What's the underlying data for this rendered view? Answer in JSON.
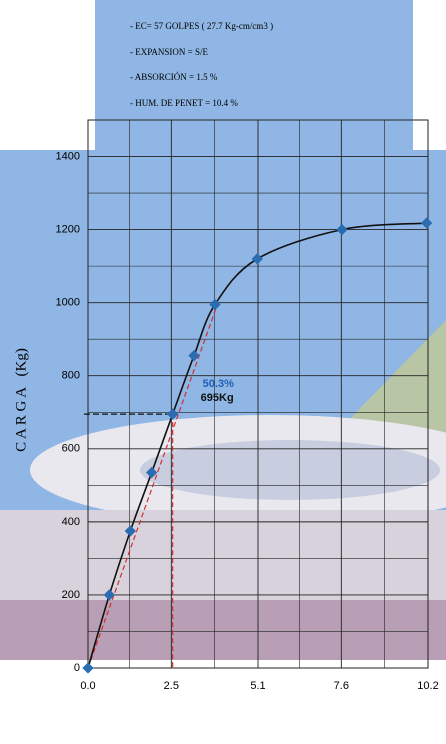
{
  "chart_data": {
    "type": "line",
    "annotations": [
      "- EC= 57 GOLPES ( 27.7 Kg-cm/cm3 )",
      "- EXPANSION  =  S/E",
      "- ABSORCIÓN  =  1.5 %",
      "- HUM. DE PENET  =  10.4 %"
    ],
    "y_label": "C A R G A   (Kg)",
    "x": [
      0,
      0.64,
      1.27,
      1.91,
      2.54,
      3.18,
      3.81,
      5.08,
      7.62,
      10.16
    ],
    "series": [
      {
        "color": "#2b6cb0",
        "values": [
          0,
          200,
          375,
          535,
          695,
          855,
          995,
          1120,
          1200,
          1218
        ]
      }
    ],
    "correction_line": {
      "color": "#d32f2f",
      "x": [
        0,
        3.9
      ],
      "y": [
        0,
        1000
      ]
    },
    "highlight_point": 4,
    "point_labels": [
      "50.3%",
      "695Kg"
    ],
    "xlim": [
      0,
      10.2
    ],
    "xticks": [
      {
        "value": 0,
        "label": "0.0"
      },
      2.5,
      5.1,
      7.6,
      10.2
    ],
    "ylim": [
      0,
      1500
    ],
    "yticks": [
      0,
      200,
      400,
      600,
      800,
      1000,
      1200,
      1400
    ],
    "grid": true,
    "minor_grid": true
  }
}
